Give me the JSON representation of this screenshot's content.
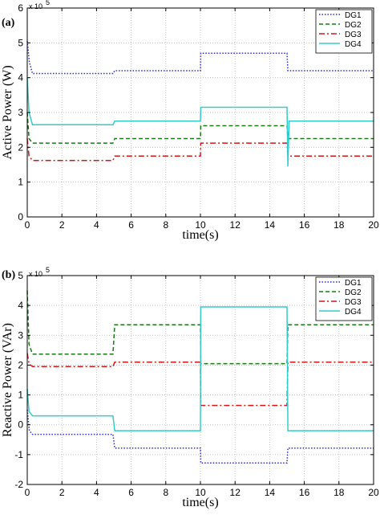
{
  "chart_data": [
    {
      "type": "line",
      "panel_label": "(a)",
      "ylabel": "Active Power (W)",
      "xlabel": "time(s)",
      "y_exponent_label": "x 10",
      "y_exponent_power": "5",
      "xlim": [
        0,
        20
      ],
      "ylim": [
        0,
        6
      ],
      "xticks": [
        "0",
        "2",
        "4",
        "6",
        "8",
        "10",
        "12",
        "14",
        "16",
        "18",
        "20"
      ],
      "yticks": [
        "0",
        "1",
        "2",
        "3",
        "4",
        "5",
        "6"
      ],
      "grid": true,
      "legend_position": "top-right",
      "series": [
        {
          "name": "DG1",
          "color": "#2b2bd0",
          "style": "dotted",
          "points": [
            [
              0,
              5.05
            ],
            [
              0.12,
              4.45
            ],
            [
              0.3,
              4.12
            ],
            [
              4.95,
              4.12
            ],
            [
              5.05,
              4.2
            ],
            [
              10,
              4.2
            ],
            [
              10.02,
              4.7
            ],
            [
              15,
              4.7
            ],
            [
              15.05,
              4.2
            ],
            [
              20,
              4.2
            ]
          ]
        },
        {
          "name": "DG2",
          "color": "#1a7a1a",
          "style": "dashed",
          "points": [
            [
              0,
              3.0
            ],
            [
              0.1,
              2.25
            ],
            [
              0.3,
              2.12
            ],
            [
              4.95,
              2.12
            ],
            [
              5.05,
              2.25
            ],
            [
              10,
              2.25
            ],
            [
              10.02,
              2.62
            ],
            [
              15,
              2.62
            ],
            [
              15.05,
              2.25
            ],
            [
              20,
              2.25
            ]
          ]
        },
        {
          "name": "DG3",
          "color": "#d01818",
          "style": "dashdot",
          "points": [
            [
              0,
              2.25
            ],
            [
              0.1,
              1.75
            ],
            [
              0.3,
              1.62
            ],
            [
              4.95,
              1.62
            ],
            [
              5.05,
              1.75
            ],
            [
              10,
              1.75
            ],
            [
              10.02,
              2.12
            ],
            [
              15,
              2.12
            ],
            [
              15.05,
              1.75
            ],
            [
              20,
              1.75
            ]
          ]
        },
        {
          "name": "DG4",
          "color": "#33cccc",
          "style": "solid",
          "points": [
            [
              0,
              4.0
            ],
            [
              0.1,
              3.0
            ],
            [
              0.3,
              2.65
            ],
            [
              4.95,
              2.65
            ],
            [
              5.05,
              2.75
            ],
            [
              10,
              2.75
            ],
            [
              10.02,
              3.15
            ],
            [
              15,
              3.15
            ],
            [
              15.05,
              1.45
            ],
            [
              15.12,
              2.75
            ],
            [
              20,
              2.75
            ]
          ]
        }
      ]
    },
    {
      "type": "line",
      "panel_label": "(b)",
      "ylabel": "Reactive Power (VAr)",
      "xlabel": "time(s)",
      "y_exponent_label": "x 10",
      "y_exponent_power": "5",
      "xlim": [
        0,
        20
      ],
      "ylim": [
        -2,
        5
      ],
      "xticks": [
        "0",
        "2",
        "4",
        "6",
        "8",
        "10",
        "12",
        "14",
        "16",
        "18",
        "20"
      ],
      "yticks": [
        "-2",
        "-1",
        "0",
        "1",
        "2",
        "3",
        "4",
        "5"
      ],
      "grid": true,
      "legend_position": "top-right",
      "series": [
        {
          "name": "DG1",
          "color": "#2b2bd0",
          "style": "dotted",
          "points": [
            [
              0,
              0.5
            ],
            [
              0.12,
              -0.2
            ],
            [
              0.3,
              -0.32
            ],
            [
              4.95,
              -0.32
            ],
            [
              5.05,
              -0.78
            ],
            [
              10,
              -0.78
            ],
            [
              10.02,
              -1.28
            ],
            [
              15,
              -1.28
            ],
            [
              15.05,
              -0.78
            ],
            [
              20,
              -0.78
            ]
          ]
        },
        {
          "name": "DG2",
          "color": "#1a7a1a",
          "style": "dashed",
          "points": [
            [
              0,
              4.5
            ],
            [
              0.1,
              2.7
            ],
            [
              0.3,
              2.37
            ],
            [
              4.95,
              2.37
            ],
            [
              5.05,
              3.35
            ],
            [
              10,
              3.35
            ],
            [
              10.02,
              2.05
            ],
            [
              15,
              2.05
            ],
            [
              15.05,
              3.35
            ],
            [
              20,
              3.35
            ]
          ]
        },
        {
          "name": "DG3",
          "color": "#d01818",
          "style": "dashdot",
          "points": [
            [
              0,
              2.4
            ],
            [
              0.1,
              2.05
            ],
            [
              0.3,
              1.95
            ],
            [
              4.95,
              1.95
            ],
            [
              5.05,
              2.1
            ],
            [
              10,
              2.1
            ],
            [
              10.02,
              0.65
            ],
            [
              15,
              0.65
            ],
            [
              15.05,
              2.1
            ],
            [
              20,
              2.1
            ]
          ]
        },
        {
          "name": "DG4",
          "color": "#33cccc",
          "style": "solid",
          "points": [
            [
              0,
              1.2
            ],
            [
              0.1,
              0.45
            ],
            [
              0.3,
              0.3
            ],
            [
              4.95,
              0.3
            ],
            [
              5.05,
              -0.2
            ],
            [
              10,
              -0.2
            ],
            [
              10.02,
              3.95
            ],
            [
              15,
              3.95
            ],
            [
              15.05,
              -0.2
            ],
            [
              20,
              -0.2
            ]
          ]
        }
      ]
    }
  ]
}
